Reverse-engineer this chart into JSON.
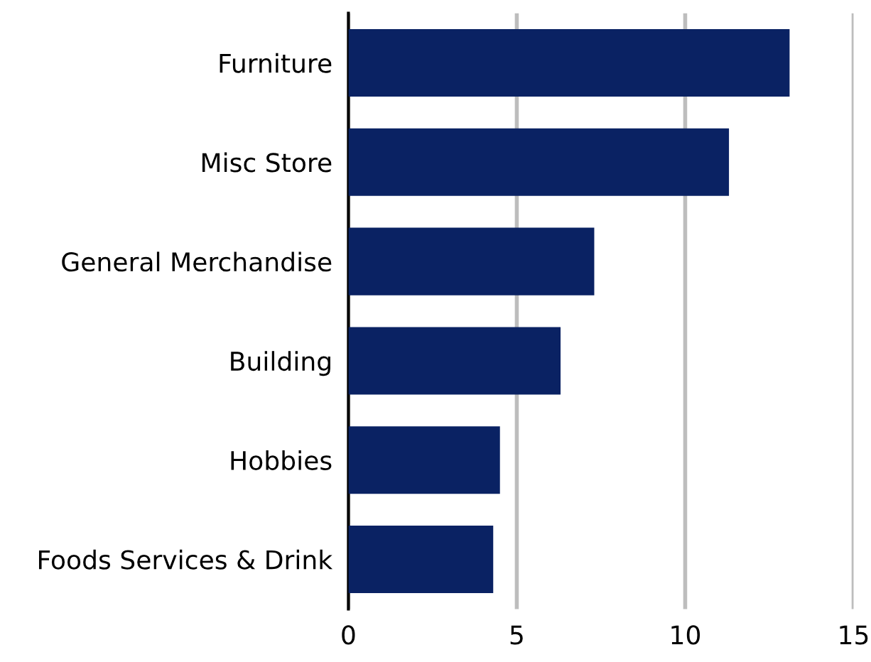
{
  "chart_data": {
    "type": "bar",
    "orientation": "horizontal",
    "categories": [
      "Furniture",
      "Misc Store",
      "General Merchandise",
      "Building",
      "Hobbies",
      "Foods Services & Drink"
    ],
    "values": [
      13.1,
      11.3,
      7.3,
      6.3,
      4.5,
      4.3
    ],
    "color": "#0a2263",
    "xlim": [
      0,
      15
    ],
    "xticks": [
      0,
      5,
      10,
      15
    ],
    "grid": "x"
  }
}
